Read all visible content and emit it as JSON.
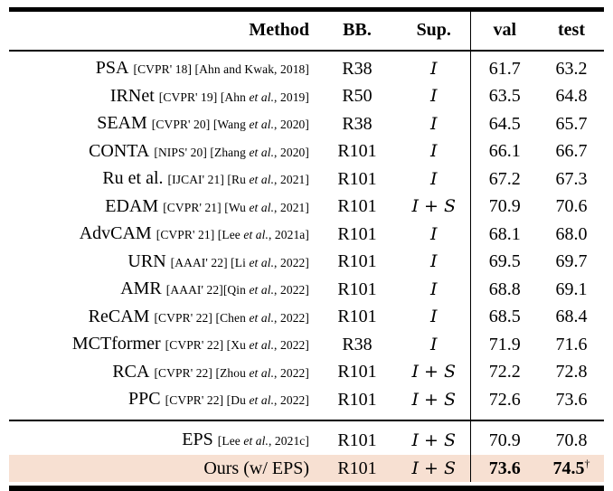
{
  "table": {
    "header": {
      "method": "Method",
      "bb": "BB.",
      "sup": "Sup.",
      "val": "val",
      "test": "test"
    },
    "rows": [
      {
        "method": "PSA",
        "cite": "[CVPR' 18] [Ahn and Kwak, 2018]",
        "bb": "R38",
        "sup": "I",
        "val": "61.7",
        "test": "63.2"
      },
      {
        "method": "IRNet",
        "cite": "[CVPR' 19] [Ahn et al., 2019]",
        "bb": "R50",
        "sup": "I",
        "val": "63.5",
        "test": "64.8"
      },
      {
        "method": "SEAM",
        "cite": "[CVPR' 20] [Wang et al., 2020]",
        "bb": "R38",
        "sup": "I",
        "val": "64.5",
        "test": "65.7"
      },
      {
        "method": "CONTA",
        "cite": "[NIPS' 20] [Zhang et al., 2020]",
        "bb": "R101",
        "sup": "I",
        "val": "66.1",
        "test": "66.7"
      },
      {
        "method": "Ru et al.",
        "cite": "[IJCAI' 21] [Ru et al., 2021]",
        "bb": "R101",
        "sup": "I",
        "val": "67.2",
        "test": "67.3"
      },
      {
        "method": "EDAM",
        "cite": "[CVPR' 21] [Wu et al., 2021]",
        "bb": "R101",
        "sup": "I + S",
        "val": "70.9",
        "test": "70.6"
      },
      {
        "method": "AdvCAM",
        "cite": "[CVPR' 21] [Lee et al., 2021a]",
        "bb": "R101",
        "sup": "I",
        "val": "68.1",
        "test": "68.0"
      },
      {
        "method": "URN",
        "cite": "[AAAI' 22] [Li et al., 2022]",
        "bb": "R101",
        "sup": "I",
        "val": "69.5",
        "test": "69.7"
      },
      {
        "method": "AMR",
        "cite": "[AAAI' 22][Qin et al., 2022]",
        "bb": "R101",
        "sup": "I",
        "val": "68.8",
        "test": "69.1"
      },
      {
        "method": "ReCAM",
        "cite": "[CVPR' 22] [Chen et al., 2022]",
        "bb": "R101",
        "sup": "I",
        "val": "68.5",
        "test": "68.4"
      },
      {
        "method": "MCTformer",
        "cite": "[CVPR' 22] [Xu et al., 2022]",
        "bb": "R38",
        "sup": "I",
        "val": "71.9",
        "test": "71.6"
      },
      {
        "method": "RCA",
        "cite": "[CVPR' 22] [Zhou et al., 2022]",
        "bb": "R101",
        "sup": "I + S",
        "val": "72.2",
        "test": "72.8"
      },
      {
        "method": "PPC",
        "cite": "[CVPR' 22] [Du et al., 2022]",
        "bb": "R101",
        "sup": "I + S",
        "val": "72.6",
        "test": "73.6"
      }
    ],
    "footer_rows": [
      {
        "method": "EPS",
        "cite": "[Lee et al., 2021c]",
        "bb": "R101",
        "sup": "I + S",
        "val": "70.9",
        "test": "70.8"
      },
      {
        "method": "Ours (w/ EPS)",
        "cite": "",
        "bb": "R101",
        "sup": "I + S",
        "val": "73.6",
        "test": "74.5",
        "dagger": "†",
        "bold_scores": true,
        "highlighted": true
      }
    ]
  },
  "colors": {
    "highlight_row": "#f7e0d2",
    "text": "#000000",
    "rule": "#000000"
  }
}
